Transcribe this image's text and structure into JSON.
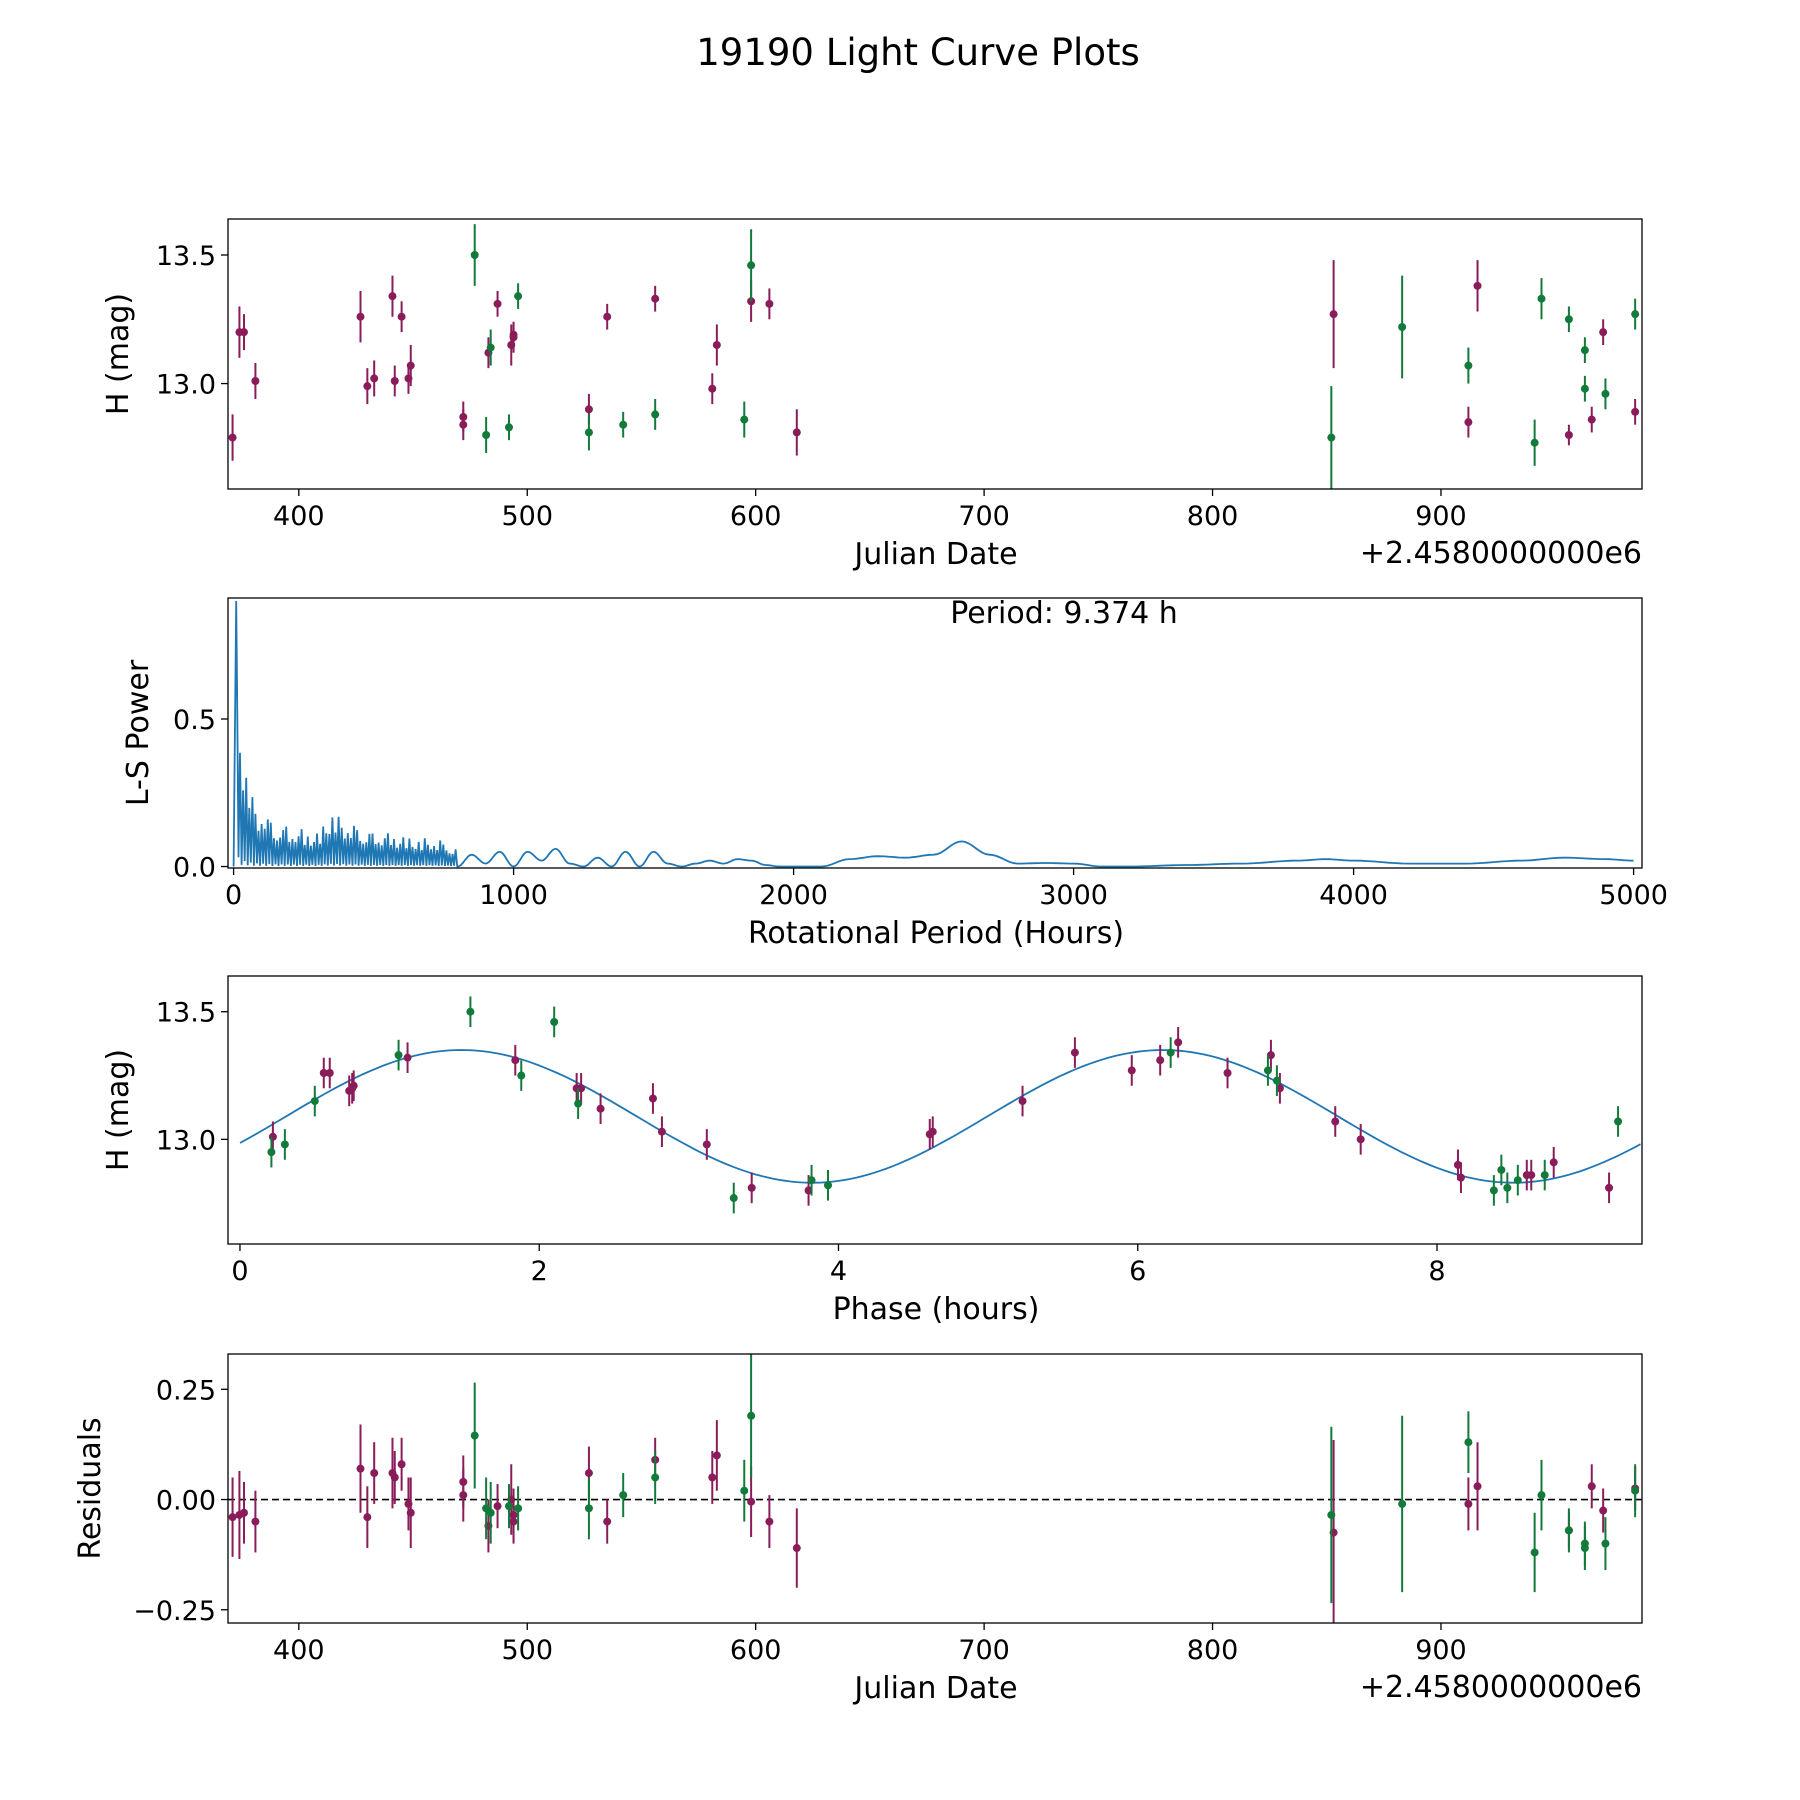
{
  "figure": {
    "title": "19190 Light Curve Plots"
  },
  "colors": {
    "series_a": "#8a1c5a",
    "series_b": "#127a3a",
    "curve": "#1f77b4",
    "zero_line": "#000000"
  },
  "chart_data": [
    {
      "type": "scatter",
      "name": "light-curve",
      "xlabel": "Julian Date",
      "ylabel": "H (mag)",
      "offset_text": "+2.4580000000e6",
      "xlim": [
        369,
        988
      ],
      "ylim": [
        12.59,
        13.64
      ],
      "xticks": [
        400,
        500,
        600,
        700,
        800,
        900
      ],
      "xtick_labels": [
        "400",
        "500",
        "600",
        "700",
        "800",
        "900"
      ],
      "yticks": [
        13.0,
        13.5
      ],
      "ytick_labels": [
        "13.0",
        "13.5"
      ],
      "series": [
        {
          "name": "series-a",
          "color_key": "series_a",
          "x": [
            371,
            374,
            376,
            381,
            427,
            430,
            433,
            441,
            442,
            445,
            448,
            449,
            472,
            472,
            483,
            487,
            493,
            494,
            494,
            527,
            535,
            556,
            581,
            583,
            598,
            606,
            618,
            853,
            912,
            916,
            956,
            966,
            971,
            985
          ],
          "y": [
            12.79,
            13.2,
            13.2,
            13.01,
            13.26,
            12.99,
            13.02,
            13.34,
            13.01,
            13.26,
            13.02,
            13.07,
            12.87,
            12.84,
            13.12,
            13.31,
            13.15,
            13.18,
            13.19,
            12.9,
            13.26,
            13.33,
            12.98,
            13.15,
            13.32,
            13.31,
            12.81,
            13.27,
            12.85,
            13.38,
            12.8,
            12.86,
            13.2,
            12.89
          ],
          "err": [
            0.09,
            0.1,
            0.07,
            0.07,
            0.1,
            0.07,
            0.07,
            0.08,
            0.06,
            0.06,
            0.06,
            0.08,
            0.06,
            0.06,
            0.06,
            0.05,
            0.08,
            0.06,
            0.05,
            0.06,
            0.05,
            0.05,
            0.06,
            0.08,
            0.08,
            0.06,
            0.09,
            0.21,
            0.06,
            0.1,
            0.04,
            0.05,
            0.05,
            0.05
          ]
        },
        {
          "name": "series-b",
          "color_key": "series_b",
          "x": [
            477,
            482,
            484,
            492,
            496,
            527,
            542,
            556,
            595,
            598,
            852,
            883,
            912,
            941,
            944,
            956,
            963,
            963,
            972,
            985
          ],
          "y": [
            13.5,
            12.8,
            13.14,
            12.83,
            13.34,
            12.81,
            12.84,
            12.88,
            12.86,
            13.46,
            12.79,
            13.22,
            13.07,
            12.77,
            13.33,
            13.25,
            13.13,
            12.98,
            12.96,
            13.27
          ],
          "err": [
            0.12,
            0.07,
            0.07,
            0.05,
            0.05,
            0.07,
            0.05,
            0.06,
            0.07,
            0.14,
            0.2,
            0.2,
            0.07,
            0.09,
            0.08,
            0.05,
            0.05,
            0.05,
            0.06,
            0.06
          ]
        }
      ]
    },
    {
      "type": "line",
      "name": "periodogram",
      "xlabel": "Rotational Period (Hours)",
      "ylabel": "L-S Power",
      "annotation": "Period: 9.374 h",
      "xlim": [
        -20,
        5030
      ],
      "ylim": [
        -0.005,
        0.91
      ],
      "xticks": [
        0,
        1000,
        2000,
        3000,
        4000,
        5000
      ],
      "xtick_labels": [
        "0",
        "1000",
        "2000",
        "3000",
        "4000",
        "5000"
      ],
      "yticks": [
        0.0,
        0.5
      ],
      "ytick_labels": [
        "0.0",
        "0.5"
      ],
      "peak": {
        "x": 9.374,
        "y": 0.9
      },
      "noise_envelope": {
        "x": [
          0,
          20,
          40,
          60,
          80,
          100,
          130,
          160,
          200,
          250,
          300,
          350,
          400,
          450,
          500,
          550,
          600,
          650,
          700,
          750,
          800
        ],
        "y": [
          0.9,
          0.6,
          0.38,
          0.28,
          0.22,
          0.2,
          0.17,
          0.15,
          0.14,
          0.13,
          0.12,
          0.2,
          0.16,
          0.14,
          0.12,
          0.12,
          0.11,
          0.1,
          0.1,
          0.09,
          0.06
        ]
      },
      "smooth_curve": {
        "x": [
          800,
          850,
          900,
          950,
          1000,
          1050,
          1100,
          1150,
          1200,
          1250,
          1300,
          1350,
          1400,
          1450,
          1500,
          1550,
          1600,
          1650,
          1700,
          1750,
          1800,
          1850,
          1900,
          1950,
          2000,
          2100,
          2200,
          2300,
          2400,
          2500,
          2600,
          2700,
          2800,
          2900,
          3000,
          3100,
          3200,
          3400,
          3600,
          3800,
          3900,
          4000,
          4200,
          4400,
          4600,
          4750,
          4900,
          5000
        ],
        "y": [
          0.0,
          0.04,
          0.01,
          0.05,
          0.0,
          0.05,
          0.02,
          0.06,
          0.01,
          0.0,
          0.03,
          0.0,
          0.05,
          0.0,
          0.05,
          0.01,
          0.0,
          0.01,
          0.02,
          0.01,
          0.025,
          0.02,
          0.005,
          0.0,
          0.0,
          0.0,
          0.025,
          0.035,
          0.03,
          0.04,
          0.085,
          0.04,
          0.01,
          0.012,
          0.01,
          0.0,
          0.0,
          0.005,
          0.01,
          0.02,
          0.025,
          0.02,
          0.01,
          0.01,
          0.02,
          0.03,
          0.025,
          0.02
        ]
      }
    },
    {
      "type": "scatter",
      "name": "phased-light-curve",
      "xlabel": "Phase (hours)",
      "ylabel": "H (mag)",
      "xlim": [
        -0.08,
        9.37
      ],
      "ylim": [
        12.59,
        13.64
      ],
      "xticks": [
        0,
        2,
        4,
        6,
        8
      ],
      "xtick_labels": [
        "0",
        "2",
        "4",
        "6",
        "8"
      ],
      "yticks": [
        13.0,
        13.5
      ],
      "ytick_labels": [
        "13.0",
        "13.5"
      ],
      "model": {
        "mean": 13.09,
        "amplitude": 0.26,
        "period": 4.687,
        "phase_of_max": 1.48,
        "x_max": 9.374
      },
      "series": [
        {
          "name": "series-a",
          "color_key": "series_a",
          "x": [
            0.22,
            0.56,
            0.6,
            0.73,
            0.75,
            0.76,
            1.12,
            1.84,
            2.25,
            2.28,
            2.41,
            2.76,
            2.82,
            3.12,
            3.42,
            3.8,
            4.61,
            4.63,
            5.23,
            5.58,
            5.96,
            6.15,
            6.27,
            6.6,
            6.89,
            6.95,
            7.32,
            7.49,
            8.14,
            8.16,
            8.6,
            8.63,
            8.78,
            9.15
          ],
          "y": [
            13.01,
            13.26,
            13.26,
            13.19,
            13.2,
            13.21,
            13.32,
            13.31,
            13.2,
            13.2,
            13.12,
            13.16,
            13.03,
            12.98,
            12.81,
            12.8,
            13.02,
            13.03,
            13.15,
            13.34,
            13.27,
            13.31,
            13.38,
            13.26,
            13.33,
            13.2,
            13.07,
            13.0,
            12.9,
            12.85,
            12.86,
            12.86,
            12.91,
            12.81
          ]
        },
        {
          "name": "series-b",
          "color_key": "series_b",
          "x": [
            0.21,
            0.3,
            0.5,
            1.06,
            1.54,
            1.88,
            2.1,
            2.26,
            3.3,
            3.82,
            3.93,
            6.22,
            6.87,
            6.93,
            8.38,
            8.43,
            8.47,
            8.54,
            8.72,
            9.21
          ],
          "y": [
            12.95,
            12.98,
            13.15,
            13.33,
            13.5,
            13.25,
            13.46,
            13.14,
            12.77,
            12.84,
            12.82,
            13.34,
            13.27,
            13.23,
            12.8,
            12.88,
            12.81,
            12.84,
            12.86,
            13.07
          ]
        }
      ]
    },
    {
      "type": "scatter",
      "name": "residuals",
      "xlabel": "Julian Date",
      "ylabel": "Residuals",
      "offset_text": "+2.4580000000e6",
      "xlim": [
        369,
        988
      ],
      "ylim": [
        -0.28,
        0.33
      ],
      "xticks": [
        400,
        500,
        600,
        700,
        800,
        900
      ],
      "xtick_labels": [
        "400",
        "500",
        "600",
        "700",
        "800",
        "900"
      ],
      "yticks": [
        0.25,
        0.0,
        -0.25
      ],
      "ytick_labels": [
        "0.25",
        "0.00",
        "−0.25"
      ],
      "zero_line": 0.0,
      "series": [
        {
          "name": "series-a",
          "color_key": "series_a",
          "x": [
            371,
            374,
            376,
            381,
            427,
            430,
            433,
            441,
            442,
            445,
            448,
            449,
            472,
            472,
            483,
            487,
            493,
            494,
            494,
            527,
            535,
            556,
            581,
            583,
            598,
            606,
            618,
            853,
            912,
            916,
            956,
            966,
            971,
            985
          ],
          "y": [
            -0.04,
            -0.035,
            -0.03,
            -0.05,
            0.07,
            -0.04,
            0.06,
            0.06,
            0.05,
            0.08,
            -0.01,
            -0.03,
            0.04,
            0.01,
            -0.06,
            -0.015,
            0.0,
            -0.035,
            -0.05,
            0.06,
            -0.05,
            0.09,
            0.05,
            0.1,
            -0.005,
            -0.05,
            -0.11,
            -0.075,
            -0.01,
            0.03,
            -0.07,
            0.03,
            -0.025,
            0.025
          ],
          "err": [
            0.09,
            0.1,
            0.07,
            0.07,
            0.1,
            0.07,
            0.07,
            0.08,
            0.06,
            0.06,
            0.06,
            0.08,
            0.06,
            0.06,
            0.06,
            0.05,
            0.08,
            0.06,
            0.05,
            0.06,
            0.05,
            0.05,
            0.06,
            0.08,
            0.08,
            0.06,
            0.09,
            0.21,
            0.06,
            0.1,
            0.04,
            0.05,
            0.05,
            0.05
          ]
        },
        {
          "name": "series-b",
          "color_key": "series_b",
          "x": [
            477,
            482,
            484,
            492,
            496,
            527,
            542,
            556,
            595,
            598,
            852,
            883,
            912,
            941,
            944,
            956,
            963,
            963,
            972,
            985
          ],
          "y": [
            0.145,
            -0.02,
            -0.03,
            -0.015,
            -0.02,
            -0.02,
            0.01,
            0.05,
            0.02,
            0.19,
            -0.035,
            -0.01,
            0.13,
            -0.12,
            0.01,
            -0.07,
            -0.1,
            -0.11,
            -0.1,
            0.02
          ],
          "err": [
            0.12,
            0.07,
            0.07,
            0.05,
            0.05,
            0.07,
            0.05,
            0.06,
            0.07,
            0.14,
            0.2,
            0.2,
            0.07,
            0.09,
            0.08,
            0.05,
            0.05,
            0.05,
            0.06,
            0.06
          ]
        }
      ]
    }
  ]
}
